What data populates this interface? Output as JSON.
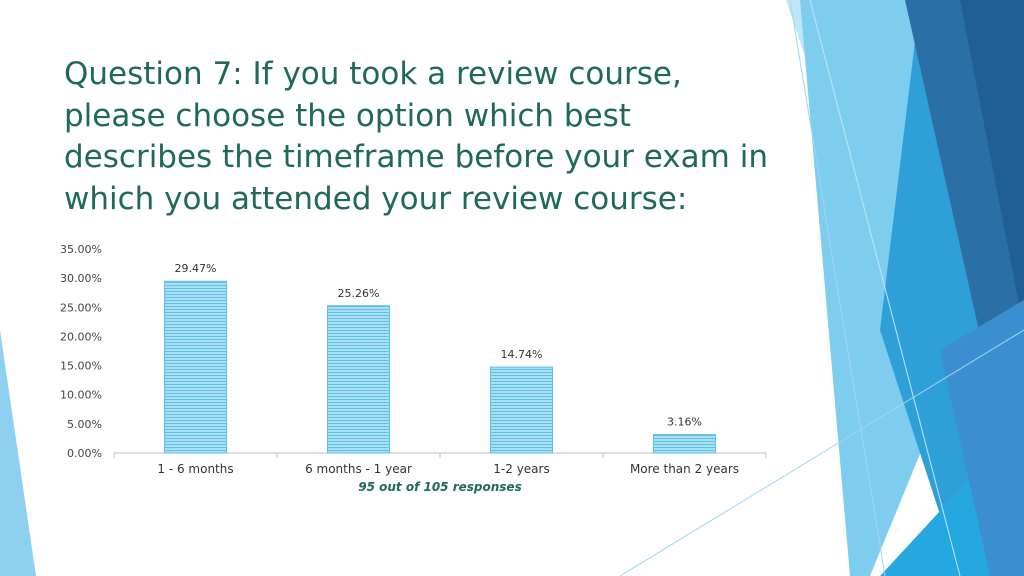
{
  "slide": {
    "title": "Question 7: If you took a review course, please choose the option which best describes the timeframe before your exam in which you attended your review course:",
    "accent_color": "#1f6b4f"
  },
  "chart_data": {
    "type": "bar",
    "title": "",
    "xlabel": "95 out of 105 responses",
    "ylabel": "",
    "categories": [
      "1 - 6 months",
      "6 months - 1 year",
      "1-2 years",
      "More than 2 years"
    ],
    "values": [
      29.47,
      25.26,
      14.74,
      3.16
    ],
    "value_labels": [
      "29.47%",
      "25.26%",
      "14.74%",
      "3.16%"
    ],
    "ylim": [
      0,
      35
    ],
    "yticks": [
      0,
      5,
      10,
      15,
      20,
      25,
      30,
      35
    ],
    "ytick_labels": [
      "0.00%",
      "5.00%",
      "10.00%",
      "15.00%",
      "20.00%",
      "25.00%",
      "30.00%",
      "35.00%"
    ],
    "grid": false,
    "legend": "none",
    "bar_color": "#8fd3ee"
  }
}
